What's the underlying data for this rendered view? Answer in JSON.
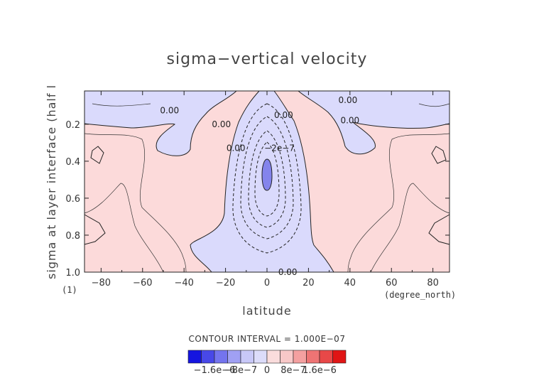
{
  "chart_data": {
    "type": "contour",
    "title": "sigma−vertical velocity",
    "xlabel": "latitude",
    "ylabel": "sigma at layer interface (half l",
    "y_unit": "(1)",
    "x_unit": "(degree_north)",
    "xlim": [
      -88,
      88
    ],
    "ylim": [
      0.02,
      1.0
    ],
    "y_inverted": true,
    "x_ticks": [
      -80,
      -60,
      -40,
      -20,
      0,
      20,
      40,
      60,
      80
    ],
    "x_tick_labels": [
      "−80",
      "−60",
      "−40",
      "−20",
      "0",
      "20",
      "40",
      "60",
      "80"
    ],
    "y_ticks": [
      0.2,
      0.4,
      0.6,
      0.8,
      1.0
    ],
    "y_tick_labels": [
      "0.2",
      "0.4",
      "0.6",
      "0.8",
      "1.0"
    ],
    "contour_interval": "CONTOUR INTERVAL = 1.000E−07",
    "contour_labels": [
      {
        "text": "0.00",
        "lat": -47,
        "sigma": 0.125
      },
      {
        "text": "0.00",
        "lat": -22,
        "sigma": 0.2
      },
      {
        "text": "0.00",
        "lat": -15,
        "sigma": 0.33
      },
      {
        "text": "0.00",
        "lat": 8,
        "sigma": 0.15
      },
      {
        "text": "0.00",
        "lat": 39,
        "sigma": 0.07
      },
      {
        "text": "0.00",
        "lat": 40,
        "sigma": 0.18
      },
      {
        "text": "−2e−7",
        "lat": 6,
        "sigma": 0.33
      },
      {
        "text": "0.00",
        "lat": 10,
        "sigma": 1.0
      }
    ],
    "colorbar": {
      "colors": [
        "#1515e0",
        "#4848e8",
        "#7474ee",
        "#a0a0f4",
        "#c8c8f8",
        "#dcdcfa",
        "#fadcdc",
        "#f8c8c8",
        "#f4a0a0",
        "#ee7474",
        "#e84848",
        "#e01515"
      ],
      "tick_labels": [
        "−1.6e−6",
        "−8e−7",
        "0",
        "8e−7",
        "1.6e−6"
      ],
      "tick_values": [
        -1.6e-06,
        -8e-07,
        0,
        8e-07,
        1.6e-06
      ]
    },
    "fill_colors": {
      "positive": "#fcdada",
      "negative": "#dadafc",
      "strong_negative": "#8484ec"
    }
  }
}
